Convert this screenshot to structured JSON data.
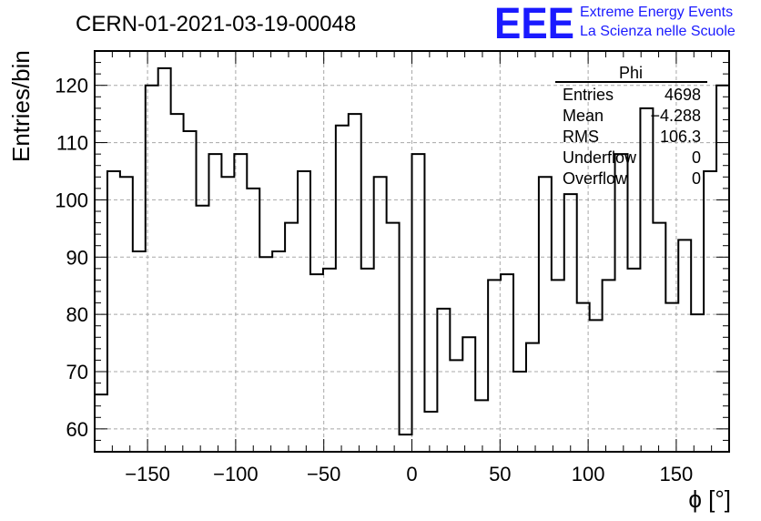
{
  "chart_data": {
    "type": "histogram",
    "title": "CERN-01-2021-03-19-00048",
    "xlabel": "ϕ [°]",
    "ylabel": "Entries/bin",
    "xlim": [
      -180,
      180
    ],
    "ylim": [
      56,
      126
    ],
    "grid": true,
    "x_ticks": [
      -150,
      -100,
      -50,
      0,
      50,
      100,
      150
    ],
    "y_ticks": [
      60,
      70,
      80,
      90,
      100,
      110,
      120
    ],
    "bin_edges_start": -180,
    "bin_width": 7.2,
    "values": [
      66,
      105,
      104,
      91,
      120,
      123,
      115,
      112,
      99,
      108,
      104,
      108,
      102,
      90,
      91,
      96,
      105,
      87,
      88,
      113,
      115,
      88,
      104,
      96,
      59,
      108,
      63,
      81,
      72,
      76,
      65,
      86,
      87,
      70,
      75,
      104,
      86,
      101,
      82,
      79,
      86,
      108,
      88,
      116,
      96,
      82,
      93,
      80,
      105,
      120
    ],
    "line_color": "#000000",
    "stats_box": {
      "title": "Phi",
      "position": "top-right",
      "rows": [
        {
          "label": "Entries",
          "value": "4698"
        },
        {
          "label": "Mean",
          "value": "−4.288"
        },
        {
          "label": "RMS",
          "value": "106.3"
        },
        {
          "label": "Underflow",
          "value": "0"
        },
        {
          "label": "Overflow",
          "value": "0"
        }
      ]
    }
  },
  "logo": {
    "mark": "EEE",
    "line1": "Extreme Energy Events",
    "line2": "La Scienza nelle Scuole",
    "color": "#1a1aff"
  }
}
